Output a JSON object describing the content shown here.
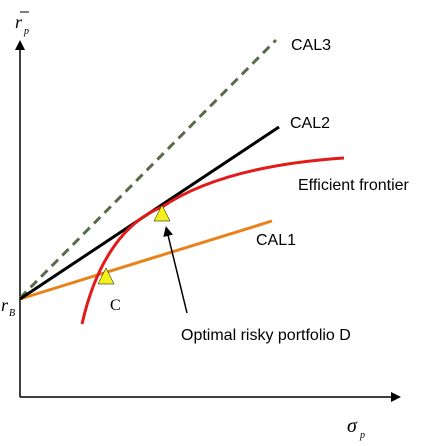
{
  "axes": {
    "y_label": "r",
    "y_label_sub": "p",
    "x_label": "σ",
    "x_label_sub": "p",
    "intercept_label": "r",
    "intercept_label_sub": "B"
  },
  "lines": {
    "cal1": {
      "label": "CAL1",
      "color": "#e8821a"
    },
    "cal2": {
      "label": "CAL2",
      "color": "#000000"
    },
    "cal3": {
      "label": "CAL3",
      "color": "#5a6b4a"
    },
    "frontier": {
      "label": "Efficient frontier",
      "color": "#e21a1a"
    }
  },
  "points": {
    "c": {
      "label": "C",
      "color": "#f2f21a"
    },
    "d": {
      "label": "Optimal risky portfolio D",
      "color": "#f2f21a"
    }
  },
  "colors": {
    "axis": "#000000",
    "text": "#000000"
  }
}
